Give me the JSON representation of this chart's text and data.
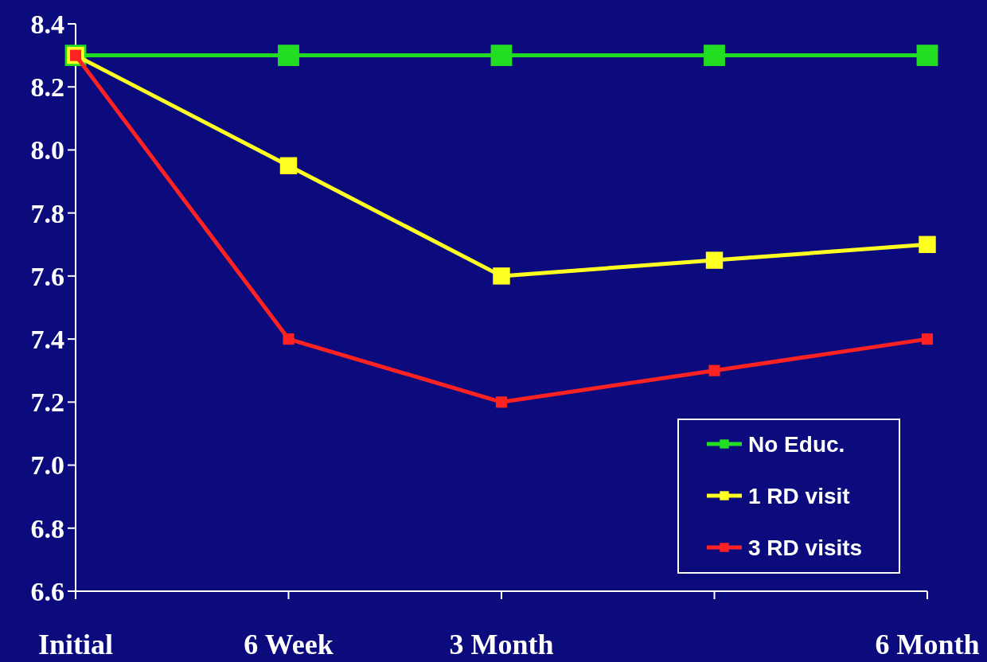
{
  "chart_data": {
    "type": "line",
    "categories": [
      "Initial",
      "6 Week",
      "3 Month",
      null,
      "6 Month"
    ],
    "series": [
      {
        "name": "No Educ.",
        "color": "#22dd22",
        "values": [
          8.3,
          8.3,
          8.3,
          8.3,
          8.3
        ]
      },
      {
        "name": "1 RD visit",
        "color": "#ffff22",
        "values": [
          8.3,
          7.95,
          7.6,
          7.65,
          7.7
        ]
      },
      {
        "name": "3 RD visits",
        "color": "#ff2222",
        "values": [
          8.3,
          7.4,
          7.2,
          7.3,
          7.4
        ]
      }
    ],
    "ylim": [
      6.6,
      8.4
    ],
    "yticks": [
      {
        "value": 6.6,
        "label": "6.6"
      },
      {
        "value": 6.8,
        "label": "6.8"
      },
      {
        "value": 7.0,
        "label": "7.0"
      },
      {
        "value": 7.2,
        "label": "7.2"
      },
      {
        "value": 7.4,
        "label": "7.4"
      },
      {
        "value": 7.6,
        "label": "7.6"
      },
      {
        "value": 7.8,
        "label": "7.8"
      },
      {
        "value": 8.0,
        "label": "8.0"
      },
      {
        "value": 8.2,
        "label": "8.2"
      },
      {
        "value": 8.4,
        "label": "8.4"
      }
    ],
    "legend": "bottom right",
    "marker": "square",
    "line_style": "solid",
    "grid": false
  }
}
